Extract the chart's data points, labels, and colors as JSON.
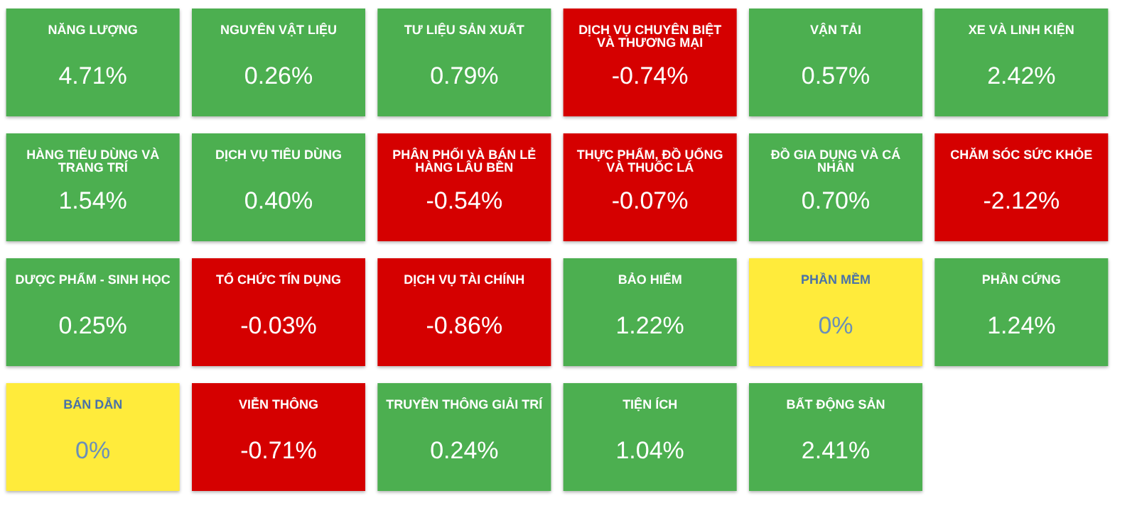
{
  "chart_data": {
    "type": "other",
    "categories": [
      "NĂNG LƯỢNG",
      "NGUYÊN VẬT LIỆU",
      "TƯ LIỆU SẢN XUẤT",
      "DỊCH VỤ CHUYÊN BIỆT VÀ THƯƠNG MẠI",
      "VẬN TẢI",
      "XE VÀ LINH KIỆN",
      "HÀNG TIÊU DÙNG VÀ TRANG TRÍ",
      "DỊCH VỤ TIÊU DÙNG",
      "PHÂN PHỐI VÀ BÁN LẺ HÀNG LÂU BỀN",
      "THỰC PHẨM, ĐỒ UỐNG VÀ THUỐC LÁ",
      "ĐỒ GIA DỤNG VÀ CÁ NHÂN",
      "CHĂM SÓC SỨC KHỎE",
      "DƯỢC PHẨM - SINH HỌC",
      "TỔ CHỨC TÍN DỤNG",
      "DỊCH VỤ TÀI CHÍNH",
      "BẢO HIỂM",
      "PHẦN MỀM",
      "PHẦN CỨNG",
      "BÁN DẪN",
      "VIỄN THÔNG",
      "TRUYỀN THÔNG GIẢI TRÍ",
      "TIỆN ÍCH",
      "BẤT ĐỘNG SẢN"
    ],
    "values": [
      4.71,
      0.26,
      0.79,
      -0.74,
      0.57,
      2.42,
      1.54,
      0.4,
      -0.54,
      -0.07,
      0.7,
      -2.12,
      0.25,
      -0.03,
      -0.86,
      1.22,
      0,
      1.24,
      0,
      -0.71,
      0.24,
      1.04,
      2.41
    ],
    "value_labels": [
      "4.71%",
      "0.26%",
      "0.79%",
      "-0.74%",
      "0.57%",
      "2.42%",
      "1.54%",
      "0.40%",
      "-0.54%",
      "-0.07%",
      "0.70%",
      "-2.12%",
      "0.25%",
      "-0.03%",
      "-0.86%",
      "1.22%",
      "0%",
      "1.24%",
      "0%",
      "-0.71%",
      "0.24%",
      "1.04%",
      "2.41%"
    ],
    "colors": [
      "#4caf50",
      "#4caf50",
      "#4caf50",
      "#d50000",
      "#4caf50",
      "#4caf50",
      "#4caf50",
      "#4caf50",
      "#d50000",
      "#d50000",
      "#4caf50",
      "#d50000",
      "#4caf50",
      "#d50000",
      "#d50000",
      "#4caf50",
      "#ffeb3b",
      "#4caf50",
      "#ffeb3b",
      "#d50000",
      "#4caf50",
      "#4caf50",
      "#4caf50"
    ]
  }
}
